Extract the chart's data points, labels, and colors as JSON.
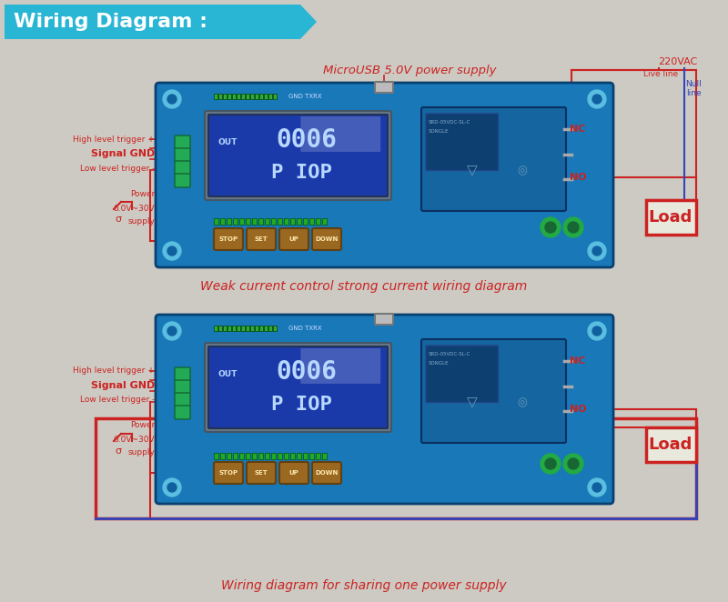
{
  "bg_color": "#cccac2",
  "title_banner_color": "#29b6d4",
  "title_text": "Wiring Diagram :",
  "title_text_color": "#ffffff",
  "board_color": "#1565a0",
  "lcd_bg": "#1a3aaa",
  "lcd_text_color": "#b8d8ff",
  "lcd_text1": "0006",
  "lcd_text2": "P IOP",
  "lcd_out": "OUT",
  "relay_color": "#1a6aaa",
  "button_color": "#9a6820",
  "button_labels": [
    "STOP",
    "SET",
    "UP",
    "DOWN"
  ],
  "red_color": "#cc2222",
  "blue_color": "#3344bb",
  "purple_color": "#664488",
  "load_text": "Load",
  "d1_top_label": "MicroUSB 5.0V power supply",
  "d1_220vac": "220VAC",
  "d1_live": "Live line",
  "d1_null": "Null\nline",
  "d1_high": "High level trigger +",
  "d1_gnd": "Signal GND",
  "d1_low": "Low level trigger -",
  "d1_power": "Power",
  "d1_supply": "6.0V~30V",
  "d1_supply2": "supply",
  "d1_nc": "NC",
  "d1_no": "NO",
  "d1_bottom": "Weak current control strong current wiring diagram",
  "d2_high": "High level trigger +",
  "d2_gnd": "Signal GND",
  "d2_low": "Low level trigger -",
  "d2_power": "Power",
  "d2_supply": "6.0V~30V",
  "d2_supply2": "supply",
  "d2_nc": "NC",
  "d2_no": "NO",
  "d2_bottom": "Wiring diagram for sharing one power supply"
}
